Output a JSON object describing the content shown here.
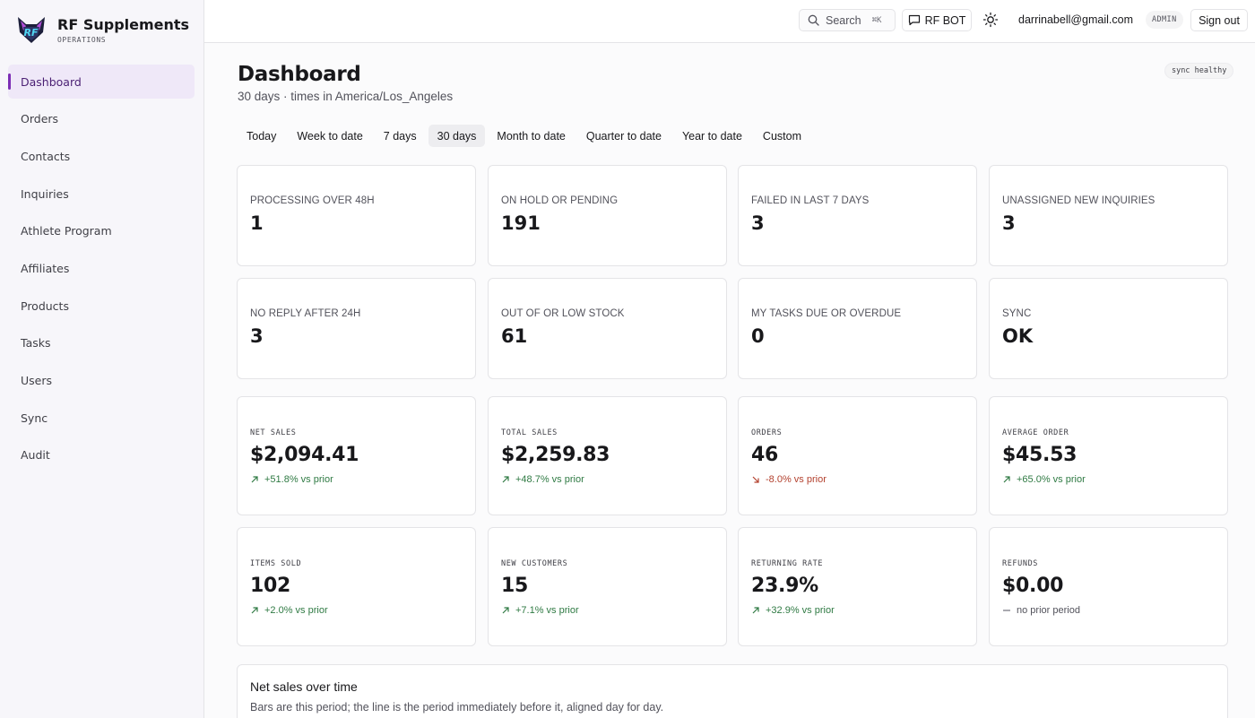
{
  "brand": {
    "name": "RF Supplements",
    "subtitle": "OPERATIONS"
  },
  "sidebar": {
    "items": [
      {
        "label": "Dashboard",
        "active": true
      },
      {
        "label": "Orders"
      },
      {
        "label": "Contacts"
      },
      {
        "label": "Inquiries"
      },
      {
        "label": "Athlete Program"
      },
      {
        "label": "Affiliates"
      },
      {
        "label": "Products"
      },
      {
        "label": "Tasks"
      },
      {
        "label": "Users"
      },
      {
        "label": "Sync"
      },
      {
        "label": "Audit"
      }
    ]
  },
  "topbar": {
    "search_label": "Search",
    "search_shortcut": "⌘K",
    "bot_label": "RF BOT",
    "user_email": "darrinabell@gmail.com",
    "role": "ADMIN",
    "signout_label": "Sign out"
  },
  "page": {
    "title": "Dashboard",
    "subtitle": "30 days · times in America/Los_Angeles",
    "sync_badge": "sync healthy"
  },
  "range_tabs": [
    {
      "label": "Today"
    },
    {
      "label": "Week to date"
    },
    {
      "label": "7 days"
    },
    {
      "label": "30 days",
      "active": true
    },
    {
      "label": "Month to date"
    },
    {
      "label": "Quarter to date"
    },
    {
      "label": "Year to date"
    },
    {
      "label": "Custom"
    }
  ],
  "alerts": [
    {
      "label": "PROCESSING OVER 48H",
      "value": "1"
    },
    {
      "label": "ON HOLD OR PENDING",
      "value": "191"
    },
    {
      "label": "FAILED IN LAST 7 DAYS",
      "value": "3"
    },
    {
      "label": "UNASSIGNED NEW INQUIRIES",
      "value": "3"
    },
    {
      "label": "NO REPLY AFTER 24H",
      "value": "3"
    },
    {
      "label": "OUT OF OR LOW STOCK",
      "value": "61"
    },
    {
      "label": "MY TASKS DUE OR OVERDUE",
      "value": "0"
    },
    {
      "label": "SYNC",
      "value": "OK"
    }
  ],
  "kpis": [
    {
      "label": "NET SALES",
      "value": "$2,094.41",
      "delta": "+51.8% vs prior",
      "trend": "up"
    },
    {
      "label": "TOTAL SALES",
      "value": "$2,259.83",
      "delta": "+48.7% vs prior",
      "trend": "up"
    },
    {
      "label": "ORDERS",
      "value": "46",
      "delta": "-8.0% vs prior",
      "trend": "down"
    },
    {
      "label": "AVERAGE ORDER",
      "value": "$45.53",
      "delta": "+65.0% vs prior",
      "trend": "up"
    },
    {
      "label": "ITEMS SOLD",
      "value": "102",
      "delta": "+2.0% vs prior",
      "trend": "up"
    },
    {
      "label": "NEW CUSTOMERS",
      "value": "15",
      "delta": "+7.1% vs prior",
      "trend": "up"
    },
    {
      "label": "RETURNING RATE",
      "value": "23.9%",
      "delta": "+32.9% vs prior",
      "trend": "up"
    },
    {
      "label": "REFUNDS",
      "value": "$0.00",
      "delta": "no prior period",
      "trend": "flat"
    }
  ],
  "chart_section": {
    "title": "Net sales over time",
    "description": "Bars are this period; the line is the period immediately before it, aligned day for day."
  },
  "colors": {
    "accent": "#7c2db5",
    "positive": "#2f7a43",
    "negative": "#b3412e"
  },
  "icons": {
    "logo": "rf-fox-logo",
    "search": "search-icon",
    "bot": "chat-icon",
    "theme": "sun-icon",
    "trend_up": "arrow-up-right-icon",
    "trend_down": "arrow-down-right-icon",
    "trend_flat": "dash-icon"
  }
}
